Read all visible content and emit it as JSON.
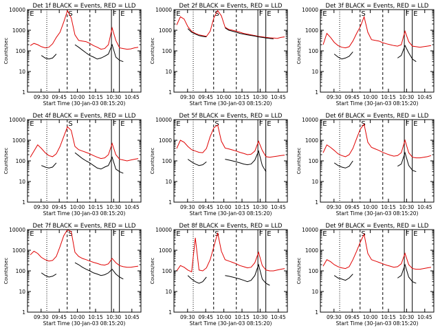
{
  "figure": {
    "colors": {
      "events": "#000000",
      "lld": "#e00000",
      "axes": "#000000",
      "background": "#ffffff"
    }
  },
  "chart_data": [
    {
      "type": "line",
      "title": "Det 1f BLACK = Events, RED = LLD",
      "ylabel": "Counts/sec",
      "xlabel": "Start Time (30-Jan-03 08:15:20)",
      "x_ticks": [
        "09:30",
        "09:45",
        "10:00",
        "10:15",
        "10:30",
        "10:45"
      ],
      "y_ticks": [
        "1",
        "10",
        "100",
        "1000",
        "10000"
      ],
      "ylim": [
        1,
        10000
      ],
      "log_y": true,
      "region_labels": [
        "E",
        "S",
        "F",
        "E"
      ],
      "series": [
        {
          "name": "LLD",
          "color": "#e00000",
          "values": [
            180,
            230,
            200,
            160,
            140,
            150,
            220,
            450,
            800,
            2500,
            9000,
            4000,
            600,
            320,
            300,
            280,
            230,
            180,
            150,
            120,
            130,
            200,
            1300,
            320,
            140,
            130,
            120,
            125,
            140,
            150
          ]
        },
        {
          "name": "Events",
          "color": "#000000",
          "values": [
            null,
            null,
            null,
            60,
            45,
            40,
            45,
            70,
            null,
            null,
            null,
            null,
            200,
            150,
            110,
            80,
            60,
            50,
            40,
            45,
            55,
            70,
            200,
            50,
            35,
            30,
            null,
            null,
            null,
            null
          ]
        }
      ]
    },
    {
      "type": "line",
      "title": "Det 2f BLACK = Events, RED = LLD",
      "ylabel": "Counts/sec",
      "xlabel": "Start Time (30-Jan-03 08:15:20)",
      "x_ticks": [
        "09:30",
        "09:45",
        "10:00",
        "10:15",
        "10:30",
        "10:45"
      ],
      "y_ticks": [
        "1",
        "10",
        "100",
        "1000",
        "10000"
      ],
      "ylim": [
        1,
        10000
      ],
      "log_y": true,
      "region_labels": [
        "E",
        "S",
        "F",
        "E"
      ],
      "series": [
        {
          "name": "LLD",
          "color": "#e00000",
          "values": [
            1800,
            4500,
            3500,
            1500,
            900,
            700,
            600,
            550,
            500,
            900,
            4000,
            9000,
            5000,
            1400,
            1100,
            1000,
            900,
            800,
            700,
            650,
            600,
            550,
            500,
            480,
            450,
            430,
            420,
            400,
            450,
            480
          ]
        },
        {
          "name": "Events",
          "color": "#000000",
          "values": [
            null,
            null,
            null,
            1200,
            800,
            650,
            550,
            500,
            480,
            null,
            null,
            null,
            null,
            1300,
            1000,
            900,
            800,
            700,
            650,
            600,
            560,
            520,
            480,
            450,
            420,
            400,
            380,
            null,
            null,
            null
          ]
        }
      ]
    },
    {
      "type": "line",
      "title": "Det 3f BLACK = Events, RED = LLD",
      "ylabel": "Counts/sec",
      "xlabel": "Start Time (30-Jan-03 08:15:20)",
      "x_ticks": [
        "09:30",
        "09:45",
        "10:00",
        "10:15",
        "10:30",
        "10:45"
      ],
      "y_ticks": [
        "1",
        "10",
        "100",
        "1000",
        "10000"
      ],
      "ylim": [
        1,
        10000
      ],
      "log_y": true,
      "region_labels": [
        "E",
        "S",
        "F",
        "E"
      ],
      "series": [
        {
          "name": "LLD",
          "color": "#e00000",
          "values": [
            200,
            700,
            450,
            260,
            180,
            150,
            140,
            160,
            300,
            700,
            1500,
            4500,
            800,
            350,
            320,
            300,
            250,
            220,
            200,
            180,
            170,
            200,
            900,
            280,
            170,
            160,
            150,
            160,
            170,
            180
          ]
        },
        {
          "name": "Events",
          "color": "#000000",
          "values": [
            null,
            null,
            null,
            70,
            50,
            40,
            45,
            55,
            90,
            null,
            null,
            null,
            null,
            null,
            null,
            null,
            null,
            null,
            null,
            null,
            45,
            60,
            180,
            80,
            40,
            30,
            null,
            null,
            null,
            null
          ]
        }
      ]
    },
    {
      "type": "line",
      "title": "Det 4f BLACK = Events, RED = LLD",
      "ylabel": "Counts/sec",
      "xlabel": "Start Time (30-Jan-03 08:15:20)",
      "x_ticks": [
        "09:30",
        "09:45",
        "10:00",
        "10:15",
        "10:30",
        "10:45"
      ],
      "y_ticks": [
        "1",
        "10",
        "100",
        "1000",
        "10000"
      ],
      "ylim": [
        1,
        10000
      ],
      "log_y": true,
      "region_labels": [
        "E",
        "S",
        "F",
        "E"
      ],
      "series": [
        {
          "name": "LLD",
          "color": "#e00000",
          "values": [
            150,
            300,
            600,
            400,
            250,
            180,
            160,
            220,
            500,
            1500,
            4500,
            3000,
            500,
            350,
            300,
            260,
            220,
            180,
            150,
            130,
            140,
            200,
            700,
            200,
            120,
            110,
            100,
            110,
            120,
            130
          ]
        },
        {
          "name": "Events",
          "color": "#000000",
          "values": [
            null,
            null,
            null,
            60,
            50,
            45,
            50,
            80,
            null,
            null,
            null,
            null,
            250,
            180,
            130,
            100,
            80,
            60,
            45,
            40,
            50,
            60,
            150,
            40,
            30,
            25,
            null,
            null,
            null,
            null
          ]
        }
      ]
    },
    {
      "type": "line",
      "title": "Det 5f BLACK = Events, RED = LLD",
      "ylabel": "Counts/sec",
      "xlabel": "Start Time (30-Jan-03 08:15:20)",
      "x_ticks": [
        "09:30",
        "09:45",
        "10:00",
        "10:15",
        "10:30",
        "10:45"
      ],
      "y_ticks": [
        "1",
        "10",
        "100",
        "1000",
        "10000"
      ],
      "ylim": [
        1,
        10000
      ],
      "log_y": true,
      "region_labels": [
        "E",
        "S",
        "F",
        "E"
      ],
      "series": [
        {
          "name": "LLD",
          "color": "#e00000",
          "values": [
            400,
            1000,
            800,
            500,
            350,
            300,
            260,
            250,
            400,
            1500,
            4000,
            5500,
            900,
            420,
            380,
            340,
            300,
            260,
            230,
            200,
            210,
            300,
            900,
            320,
            160,
            150,
            160,
            170,
            180,
            190
          ]
        },
        {
          "name": "Events",
          "color": "#000000",
          "values": [
            null,
            null,
            null,
            120,
            90,
            70,
            60,
            65,
            90,
            null,
            null,
            null,
            null,
            120,
            110,
            100,
            90,
            80,
            70,
            65,
            70,
            110,
            300,
            60,
            30,
            null,
            null,
            null,
            null,
            null
          ]
        }
      ]
    },
    {
      "type": "line",
      "title": "Det 6f BLACK = Events, RED = LLD",
      "ylabel": "Counts/sec",
      "xlabel": "Start Time (30-Jan-03 08:15:20)",
      "x_ticks": [
        "09:30",
        "09:45",
        "10:00",
        "10:15",
        "10:30",
        "10:45"
      ],
      "y_ticks": [
        "1",
        "10",
        "100",
        "1000",
        "10000"
      ],
      "ylim": [
        1,
        10000
      ],
      "log_y": true,
      "region_labels": [
        "E",
        "S",
        "F",
        "E"
      ],
      "series": [
        {
          "name": "LLD",
          "color": "#e00000",
          "values": [
            250,
            600,
            450,
            320,
            220,
            180,
            160,
            200,
            400,
            1200,
            3500,
            6000,
            800,
            450,
            380,
            320,
            260,
            220,
            190,
            170,
            180,
            250,
            1000,
            250,
            150,
            140,
            140,
            150,
            160,
            180
          ]
        },
        {
          "name": "Events",
          "color": "#000000",
          "values": [
            null,
            null,
            null,
            80,
            60,
            50,
            45,
            55,
            100,
            null,
            null,
            null,
            null,
            null,
            null,
            null,
            null,
            null,
            null,
            null,
            55,
            70,
            250,
            60,
            35,
            30,
            null,
            null,
            null,
            null
          ]
        }
      ]
    },
    {
      "type": "line",
      "title": "Det 7f BLACK = Events, RED = LLD",
      "ylabel": "Counts/sec",
      "xlabel": "Start Time (30-Jan-03 08:15:20)",
      "x_ticks": [
        "09:30",
        "09:45",
        "10:00",
        "10:15",
        "10:30",
        "10:45"
      ],
      "y_ticks": [
        "1",
        "10",
        "100",
        "1000",
        "10000"
      ],
      "ylim": [
        1,
        10000
      ],
      "log_y": true,
      "region_labels": [
        "E",
        "S",
        "F",
        "E"
      ],
      "series": [
        {
          "name": "LLD",
          "color": "#e00000",
          "values": [
            600,
            900,
            700,
            450,
            350,
            300,
            320,
            500,
            1500,
            5000,
            10000,
            8000,
            800,
            500,
            400,
            350,
            300,
            260,
            230,
            200,
            190,
            220,
            400,
            250,
            180,
            160,
            150,
            150,
            160,
            170
          ]
        },
        {
          "name": "Events",
          "color": "#000000",
          "values": [
            null,
            null,
            null,
            80,
            60,
            50,
            55,
            70,
            null,
            null,
            null,
            null,
            250,
            200,
            150,
            120,
            100,
            80,
            70,
            60,
            65,
            80,
            120,
            70,
            50,
            40,
            null,
            null,
            null,
            null
          ]
        }
      ]
    },
    {
      "type": "line",
      "title": "Det 8f BLACK = Events, RED = LLD",
      "ylabel": "Counts/sec",
      "xlabel": "Start Time (30-Jan-03 08:15:20)",
      "x_ticks": [
        "09:30",
        "09:45",
        "10:00",
        "10:15",
        "10:30",
        "10:45"
      ],
      "y_ticks": [
        "1",
        "10",
        "100",
        "1000",
        "10000"
      ],
      "ylim": [
        1,
        10000
      ],
      "log_y": true,
      "region_labels": [
        "E",
        "S",
        "F",
        "E"
      ],
      "series": [
        {
          "name": "LLD",
          "color": "#e00000",
          "values": [
            100,
            180,
            150,
            110,
            90,
            4000,
            110,
            100,
            140,
            350,
            1500,
            7000,
            900,
            350,
            300,
            260,
            220,
            180,
            160,
            140,
            150,
            250,
            800,
            180,
            110,
            100,
            100,
            110,
            120,
            130
          ]
        },
        {
          "name": "Events",
          "color": "#000000",
          "values": [
            null,
            null,
            null,
            60,
            40,
            30,
            25,
            30,
            50,
            null,
            null,
            null,
            null,
            60,
            55,
            50,
            45,
            40,
            35,
            30,
            35,
            60,
            200,
            40,
            25,
            20,
            null,
            null,
            null,
            null
          ]
        }
      ]
    },
    {
      "type": "line",
      "title": "Det 9f BLACK = Events, RED = LLD",
      "ylabel": "Counts/sec",
      "xlabel": "Start Time (30-Jan-03 08:15:20)",
      "x_ticks": [
        "09:30",
        "09:45",
        "10:00",
        "10:15",
        "10:30",
        "10:45"
      ],
      "y_ticks": [
        "1",
        "10",
        "100",
        "1000",
        "10000"
      ],
      "ylim": [
        1,
        10000
      ],
      "log_y": true,
      "region_labels": [
        "E",
        "S",
        "F",
        "E"
      ],
      "series": [
        {
          "name": "LLD",
          "color": "#e00000",
          "values": [
            170,
            350,
            280,
            200,
            160,
            140,
            130,
            160,
            350,
            900,
            2500,
            6000,
            700,
            350,
            300,
            260,
            220,
            190,
            170,
            150,
            160,
            220,
            700,
            200,
            130,
            120,
            120,
            130,
            140,
            150
          ]
        },
        {
          "name": "Events",
          "color": "#000000",
          "values": [
            null,
            null,
            null,
            60,
            45,
            40,
            35,
            45,
            70,
            null,
            null,
            null,
            null,
            null,
            null,
            null,
            null,
            null,
            null,
            null,
            45,
            60,
            200,
            50,
            30,
            25,
            null,
            null,
            null,
            null
          ]
        }
      ]
    }
  ]
}
